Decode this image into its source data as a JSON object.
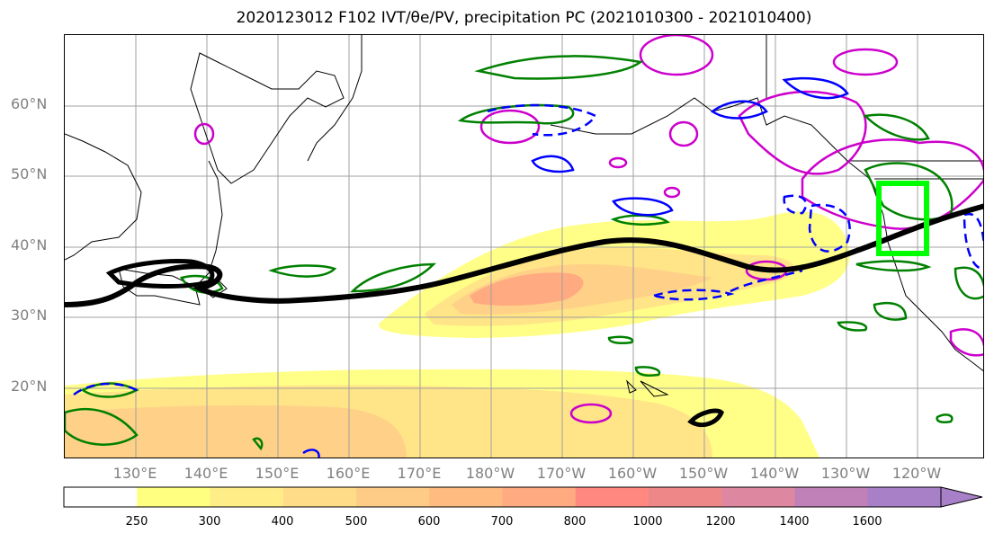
{
  "title": "2020123012 F102 IVT/θe/PV, precipitation PC (2021010300 - 2021010400)",
  "map": {
    "lat_labels": [
      "60°N",
      "50°N",
      "40°N",
      "30°N",
      "20°N"
    ],
    "lon_labels": [
      "130°E",
      "140°E",
      "150°E",
      "160°E",
      "170°E",
      "180°W",
      "170°W",
      "160°W",
      "150°W",
      "140°W",
      "130°W",
      "120°W"
    ]
  },
  "colorbar": {
    "ticks": [
      "250",
      "300",
      "400",
      "500",
      "600",
      "700",
      "800",
      "1000",
      "1200",
      "1400",
      "1600"
    ],
    "colors": [
      "#ffffff",
      "#ffff80",
      "#ffee88",
      "#ffdd88",
      "#ffcc88",
      "#ffbb80",
      "#ffaa80",
      "#ff8880",
      "#ee8888",
      "#dd88a0",
      "#c080b8",
      "#a880c8"
    ]
  },
  "colors": {
    "contour_green": "#008000",
    "contour_magenta": "#cc00cc",
    "contour_blue": "#0000ff",
    "front_line": "#000000",
    "highlight_box": "#00ff00",
    "grid": "#a0a0a0",
    "axis_labels": "#808080"
  }
}
